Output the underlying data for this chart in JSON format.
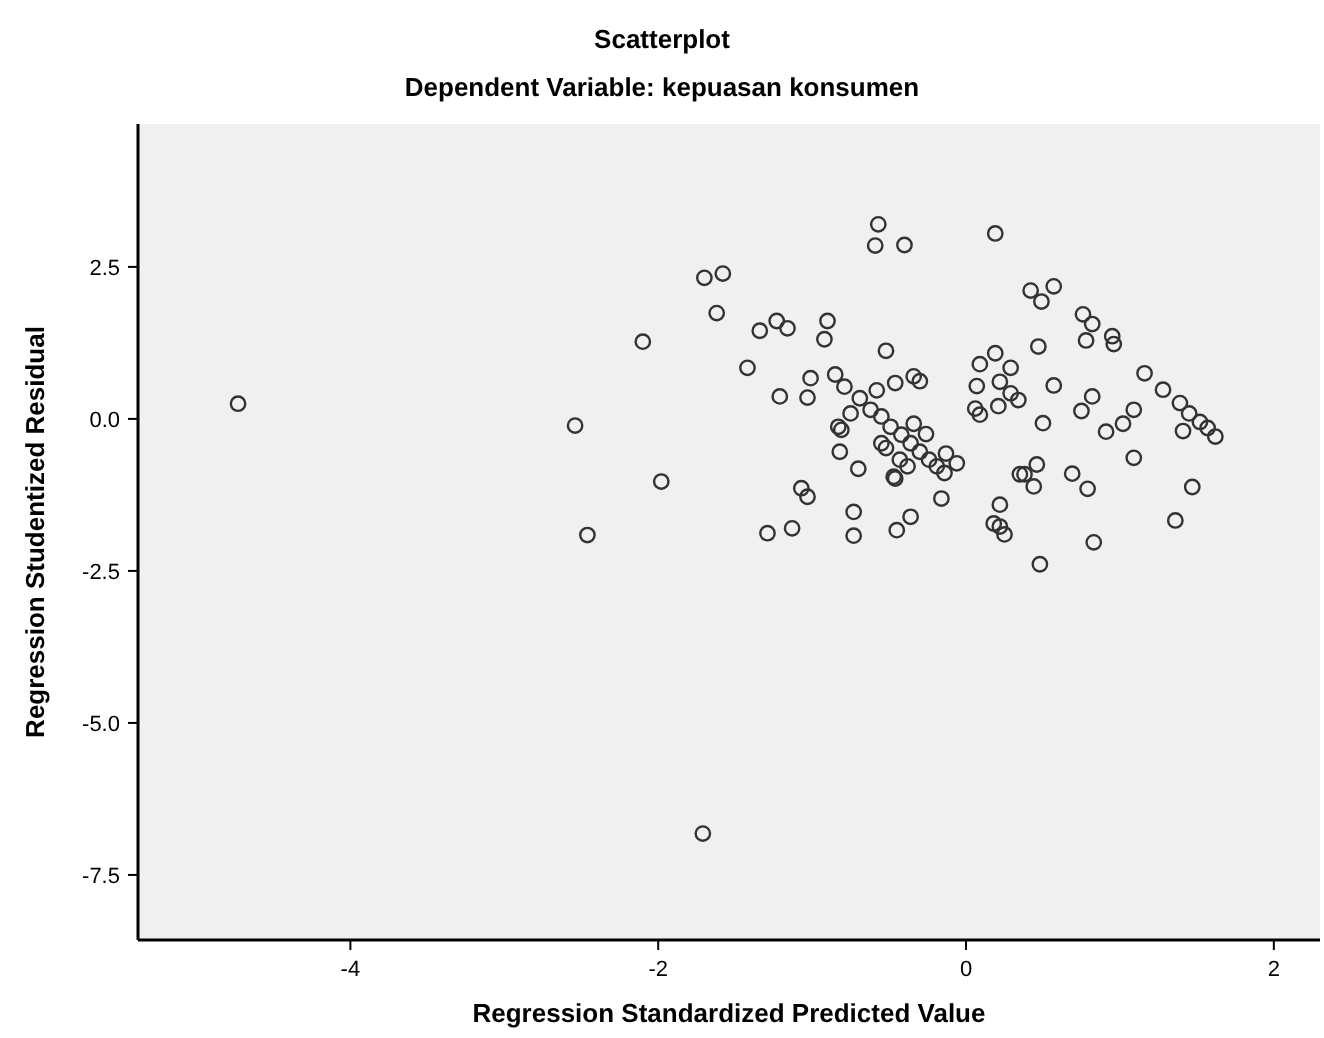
{
  "chart_data": {
    "type": "scatter",
    "title": "Scatterplot",
    "subtitle": "Dependent Variable: kepuasan konsumen",
    "xlabel": "Regression Standardized Predicted Value",
    "ylabel": "Regression Studentized Residual",
    "xlim": [
      -5.38,
      2.3
    ],
    "ylim": [
      -8.57,
      4.85
    ],
    "xticks": [
      -4,
      -2,
      0,
      2
    ],
    "yticks": [
      {
        "value": 2.5,
        "label": "2.5"
      },
      {
        "value": 0,
        "label": "0.0"
      },
      {
        "value": -2.5,
        "label": "-2.5"
      },
      {
        "value": -5,
        "label": "-5.0"
      },
      {
        "value": -7.5,
        "label": "-7.5"
      }
    ],
    "grid": false,
    "marker": "circle",
    "series": [
      {
        "color": "#333333",
        "x": [
          -0.57,
          -0.59,
          -0.4,
          -1.7,
          -1.58,
          -1.62,
          -2.1,
          -1.34,
          -1.23,
          -1.16,
          -0.9,
          -0.92,
          -1.42,
          -0.52,
          -1.01,
          -1.21,
          -1.03,
          -2.54,
          -0.85,
          -0.46,
          -0.34,
          -0.3,
          -0.58,
          -0.79,
          -0.69,
          -0.62,
          -0.55,
          -0.49,
          -0.42,
          -0.36,
          -0.3,
          -0.24,
          -0.19,
          -0.14,
          -0.83,
          -0.81,
          -0.75,
          -0.34,
          -0.26,
          -0.82,
          -0.7,
          -0.55,
          -0.52,
          -0.43,
          -0.38,
          -0.47,
          -0.46,
          -0.13,
          -0.16,
          -1.98,
          -1.07,
          -1.03,
          -0.73,
          -0.36,
          -2.46,
          -1.29,
          -1.13,
          -0.73,
          -0.45,
          0.19,
          0.42,
          0.57,
          0.49,
          0.76,
          0.82,
          0.78,
          0.95,
          0.96,
          0.47,
          0.09,
          0.19,
          0.29,
          0.07,
          0.22,
          0.29,
          0.34,
          0.21,
          0.06,
          0.09,
          0.57,
          0.5,
          0.82,
          0.75,
          0.91,
          1.02,
          1.09,
          1.09,
          1.16,
          1.28,
          1.39,
          1.45,
          1.52,
          1.57,
          1.62,
          1.41,
          1.47,
          1.36,
          0.35,
          0.38,
          0.46,
          0.44,
          0.69,
          0.79,
          0.22,
          0.18,
          0.22,
          0.25,
          0.83,
          0.48,
          -0.06,
          -4.73,
          -1.71
        ],
        "values": [
          3.2,
          2.85,
          2.86,
          2.32,
          2.39,
          1.74,
          1.27,
          1.45,
          1.61,
          1.49,
          1.61,
          1.31,
          0.84,
          1.12,
          0.67,
          0.37,
          0.35,
          -0.11,
          0.73,
          0.59,
          0.7,
          0.62,
          0.47,
          0.53,
          0.34,
          0.15,
          0.04,
          -0.13,
          -0.26,
          -0.4,
          -0.54,
          -0.67,
          -0.78,
          -0.89,
          -0.13,
          -0.18,
          0.09,
          -0.08,
          -0.25,
          -0.54,
          -0.82,
          -0.4,
          -0.48,
          -0.67,
          -0.78,
          -0.95,
          -0.98,
          -0.57,
          -1.31,
          -1.03,
          -1.14,
          -1.28,
          -1.53,
          -1.61,
          -1.91,
          -1.88,
          -1.8,
          -1.92,
          -1.83,
          3.05,
          2.11,
          2.18,
          1.93,
          1.72,
          1.56,
          1.29,
          1.36,
          1.23,
          1.19,
          0.9,
          1.08,
          0.84,
          0.54,
          0.61,
          0.42,
          0.31,
          0.21,
          0.17,
          0.07,
          0.55,
          -0.07,
          0.37,
          0.13,
          -0.21,
          -0.08,
          0.15,
          -0.64,
          0.75,
          0.48,
          0.26,
          0.09,
          -0.05,
          -0.15,
          -0.29,
          -0.2,
          -1.12,
          -1.67,
          -0.91,
          -0.91,
          -0.75,
          -1.11,
          -0.9,
          -1.15,
          -1.41,
          -1.72,
          -1.77,
          -1.9,
          -2.03,
          -2.39,
          -0.73,
          0.25,
          -6.82
        ]
      }
    ]
  }
}
